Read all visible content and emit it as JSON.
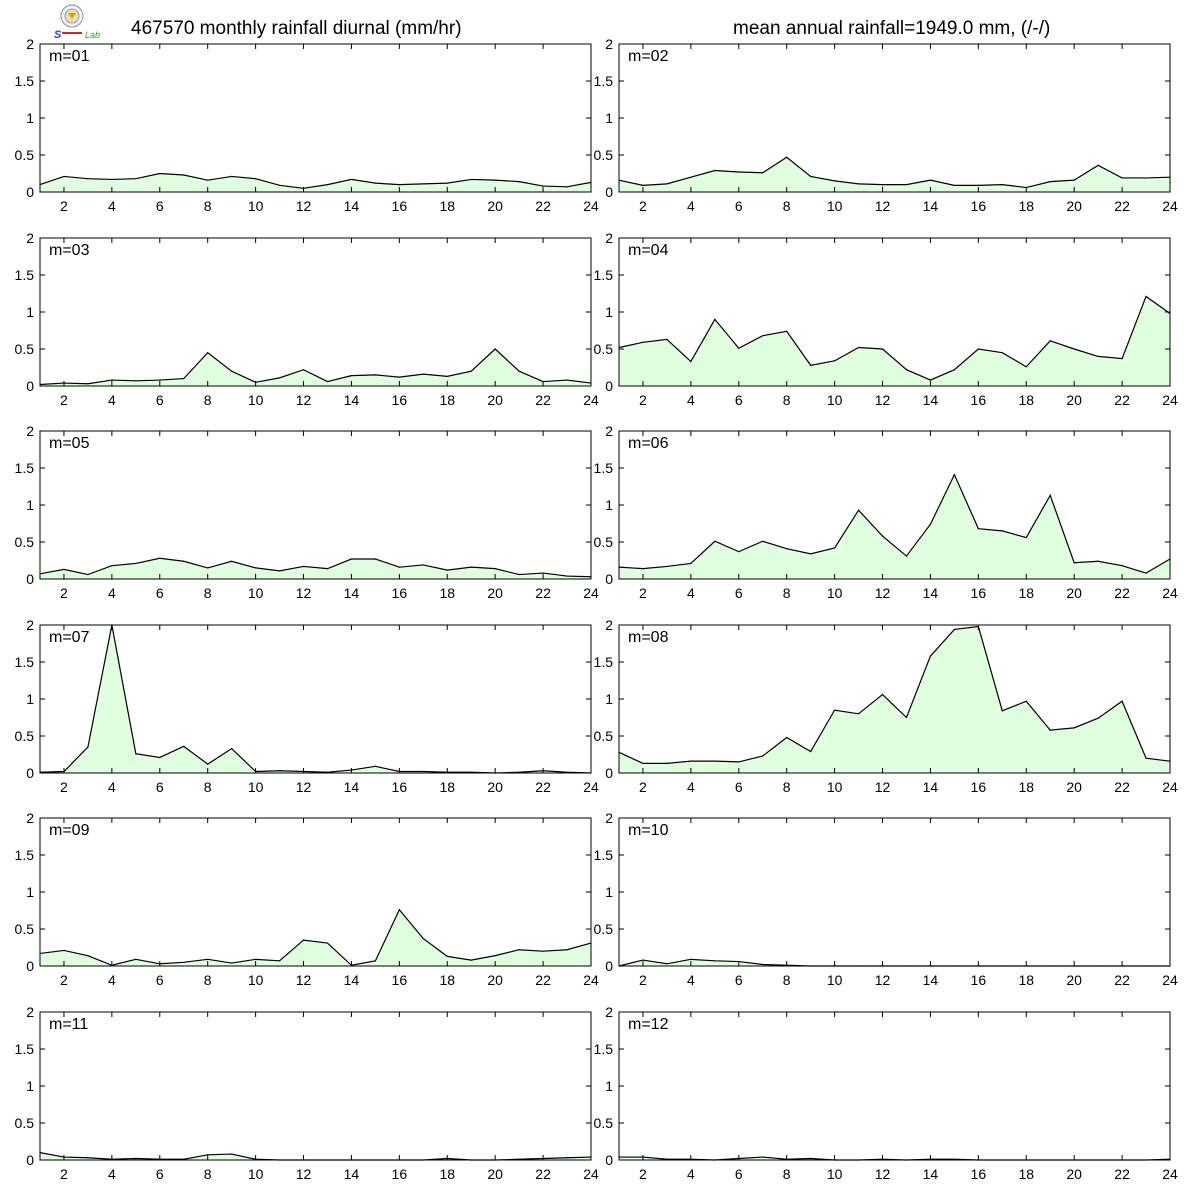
{
  "header": {
    "title_left": "467570 monthly rainfall diurnal (mm/hr)",
    "title_right": "mean annual rainfall=1949.0 mm, (/-/)"
  },
  "logo": {
    "name": "lab-logo-icon"
  },
  "colors": {
    "fill": "#dfffdf",
    "line": "#000000",
    "frame": "#000000"
  },
  "chart_data": {
    "type": "area",
    "xlim": [
      1,
      24
    ],
    "ylim": [
      0,
      2
    ],
    "xticks": [
      2,
      4,
      6,
      8,
      10,
      12,
      14,
      16,
      18,
      20,
      22,
      24
    ],
    "yticks": [
      0,
      0.5,
      1,
      1.5,
      2
    ],
    "ytick_labels": [
      "0",
      "0.5",
      "1",
      "1.5",
      "2"
    ],
    "x": [
      1,
      2,
      3,
      4,
      5,
      6,
      7,
      8,
      9,
      10,
      11,
      12,
      13,
      14,
      15,
      16,
      17,
      18,
      19,
      20,
      21,
      22,
      23,
      24
    ],
    "panels": [
      {
        "label": "m=01",
        "values": [
          0.1,
          0.21,
          0.18,
          0.17,
          0.18,
          0.25,
          0.23,
          0.16,
          0.21,
          0.18,
          0.09,
          0.05,
          0.1,
          0.17,
          0.12,
          0.1,
          0.11,
          0.12,
          0.17,
          0.16,
          0.14,
          0.08,
          0.07,
          0.13
        ]
      },
      {
        "label": "m=02",
        "values": [
          0.16,
          0.09,
          0.11,
          0.2,
          0.29,
          0.27,
          0.26,
          0.47,
          0.21,
          0.15,
          0.11,
          0.1,
          0.1,
          0.16,
          0.09,
          0.09,
          0.1,
          0.06,
          0.14,
          0.16,
          0.36,
          0.19,
          0.19,
          0.2
        ]
      },
      {
        "label": "m=03",
        "values": [
          0.02,
          0.04,
          0.03,
          0.08,
          0.07,
          0.08,
          0.1,
          0.45,
          0.2,
          0.05,
          0.11,
          0.22,
          0.06,
          0.14,
          0.15,
          0.12,
          0.16,
          0.13,
          0.2,
          0.5,
          0.2,
          0.06,
          0.08,
          0.04
        ]
      },
      {
        "label": "m=04",
        "values": [
          0.52,
          0.59,
          0.63,
          0.33,
          0.9,
          0.51,
          0.68,
          0.74,
          0.28,
          0.34,
          0.52,
          0.5,
          0.22,
          0.08,
          0.22,
          0.5,
          0.45,
          0.26,
          0.61,
          0.5,
          0.4,
          0.37,
          1.21,
          0.98
        ]
      },
      {
        "label": "m=05",
        "values": [
          0.07,
          0.13,
          0.06,
          0.18,
          0.21,
          0.28,
          0.24,
          0.15,
          0.24,
          0.15,
          0.11,
          0.17,
          0.14,
          0.27,
          0.27,
          0.16,
          0.19,
          0.12,
          0.16,
          0.14,
          0.06,
          0.08,
          0.04,
          0.03
        ]
      },
      {
        "label": "m=06",
        "values": [
          0.16,
          0.14,
          0.17,
          0.21,
          0.51,
          0.37,
          0.51,
          0.41,
          0.34,
          0.42,
          0.93,
          0.58,
          0.31,
          0.74,
          1.41,
          0.68,
          0.65,
          0.56,
          1.13,
          0.22,
          0.24,
          0.18,
          0.08,
          0.27
        ]
      },
      {
        "label": "m=07",
        "values": [
          0.01,
          0.02,
          0.35,
          2.0,
          0.26,
          0.21,
          0.36,
          0.12,
          0.33,
          0.02,
          0.03,
          0.02,
          0.01,
          0.04,
          0.09,
          0.02,
          0.02,
          0.01,
          0.01,
          0.0,
          0.01,
          0.03,
          0.01,
          0.0
        ]
      },
      {
        "label": "m=08",
        "values": [
          0.28,
          0.13,
          0.13,
          0.16,
          0.16,
          0.15,
          0.23,
          0.48,
          0.29,
          0.85,
          0.8,
          1.06,
          0.75,
          1.58,
          1.94,
          1.98,
          0.84,
          0.97,
          0.58,
          0.61,
          0.74,
          0.97,
          0.2,
          0.16
        ]
      },
      {
        "label": "m=09",
        "values": [
          0.17,
          0.21,
          0.14,
          0.01,
          0.09,
          0.03,
          0.05,
          0.09,
          0.04,
          0.09,
          0.07,
          0.35,
          0.31,
          0.01,
          0.07,
          0.76,
          0.37,
          0.13,
          0.08,
          0.14,
          0.22,
          0.2,
          0.22,
          0.31
        ]
      },
      {
        "label": "m=10",
        "values": [
          0.0,
          0.08,
          0.03,
          0.09,
          0.07,
          0.06,
          0.02,
          0.01,
          0.0,
          0.0,
          0.0,
          0.0,
          0.0,
          0.0,
          0.0,
          0.0,
          0.0,
          0.0,
          0.0,
          0.0,
          0.0,
          0.0,
          0.0,
          0.0
        ]
      },
      {
        "label": "m=11",
        "values": [
          0.1,
          0.04,
          0.03,
          0.01,
          0.02,
          0.01,
          0.01,
          0.07,
          0.08,
          0.01,
          0.0,
          0.0,
          0.0,
          0.0,
          0.0,
          0.0,
          0.0,
          0.02,
          0.0,
          0.0,
          0.01,
          0.02,
          0.03,
          0.04
        ]
      },
      {
        "label": "m=12",
        "values": [
          0.04,
          0.04,
          0.01,
          0.01,
          0.0,
          0.02,
          0.04,
          0.01,
          0.02,
          0.0,
          0.0,
          0.01,
          0.0,
          0.01,
          0.01,
          0.0,
          0.0,
          0.0,
          0.0,
          0.0,
          0.0,
          0.0,
          0.0,
          0.01
        ]
      }
    ]
  }
}
